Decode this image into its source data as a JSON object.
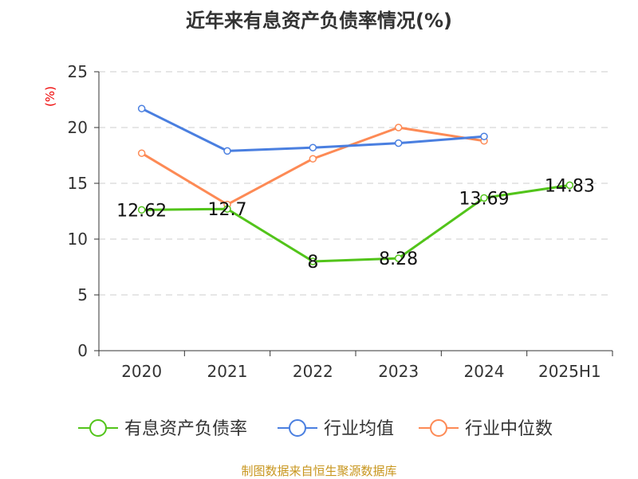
{
  "chart_data": {
    "type": "line",
    "title": "近年来有息资产负债率情况(%)",
    "ylabel": "(%)",
    "categories": [
      "2020",
      "2021",
      "2022",
      "2023",
      "2024",
      "2025H1"
    ],
    "ylim": [
      0,
      25
    ],
    "yticks": [
      0,
      5,
      10,
      15,
      20,
      25
    ],
    "grid": true,
    "legend_position": "bottom",
    "series": [
      {
        "name": "有息资产负债率",
        "color": "#52c41a",
        "values": [
          12.62,
          12.7,
          8,
          8.28,
          13.69,
          14.83
        ],
        "labels": [
          "12.62",
          "12.7",
          "8",
          "8.28",
          "13.69",
          "14.83"
        ]
      },
      {
        "name": "行业均值",
        "color": "#4a7fe0",
        "values": [
          21.7,
          17.9,
          18.2,
          18.6,
          19.2,
          null
        ]
      },
      {
        "name": "行业中位数",
        "color": "#fd8a55",
        "values": [
          17.7,
          13.1,
          17.2,
          20.0,
          18.8,
          null
        ]
      }
    ]
  },
  "source": "制图数据来自恒生聚源数据库"
}
